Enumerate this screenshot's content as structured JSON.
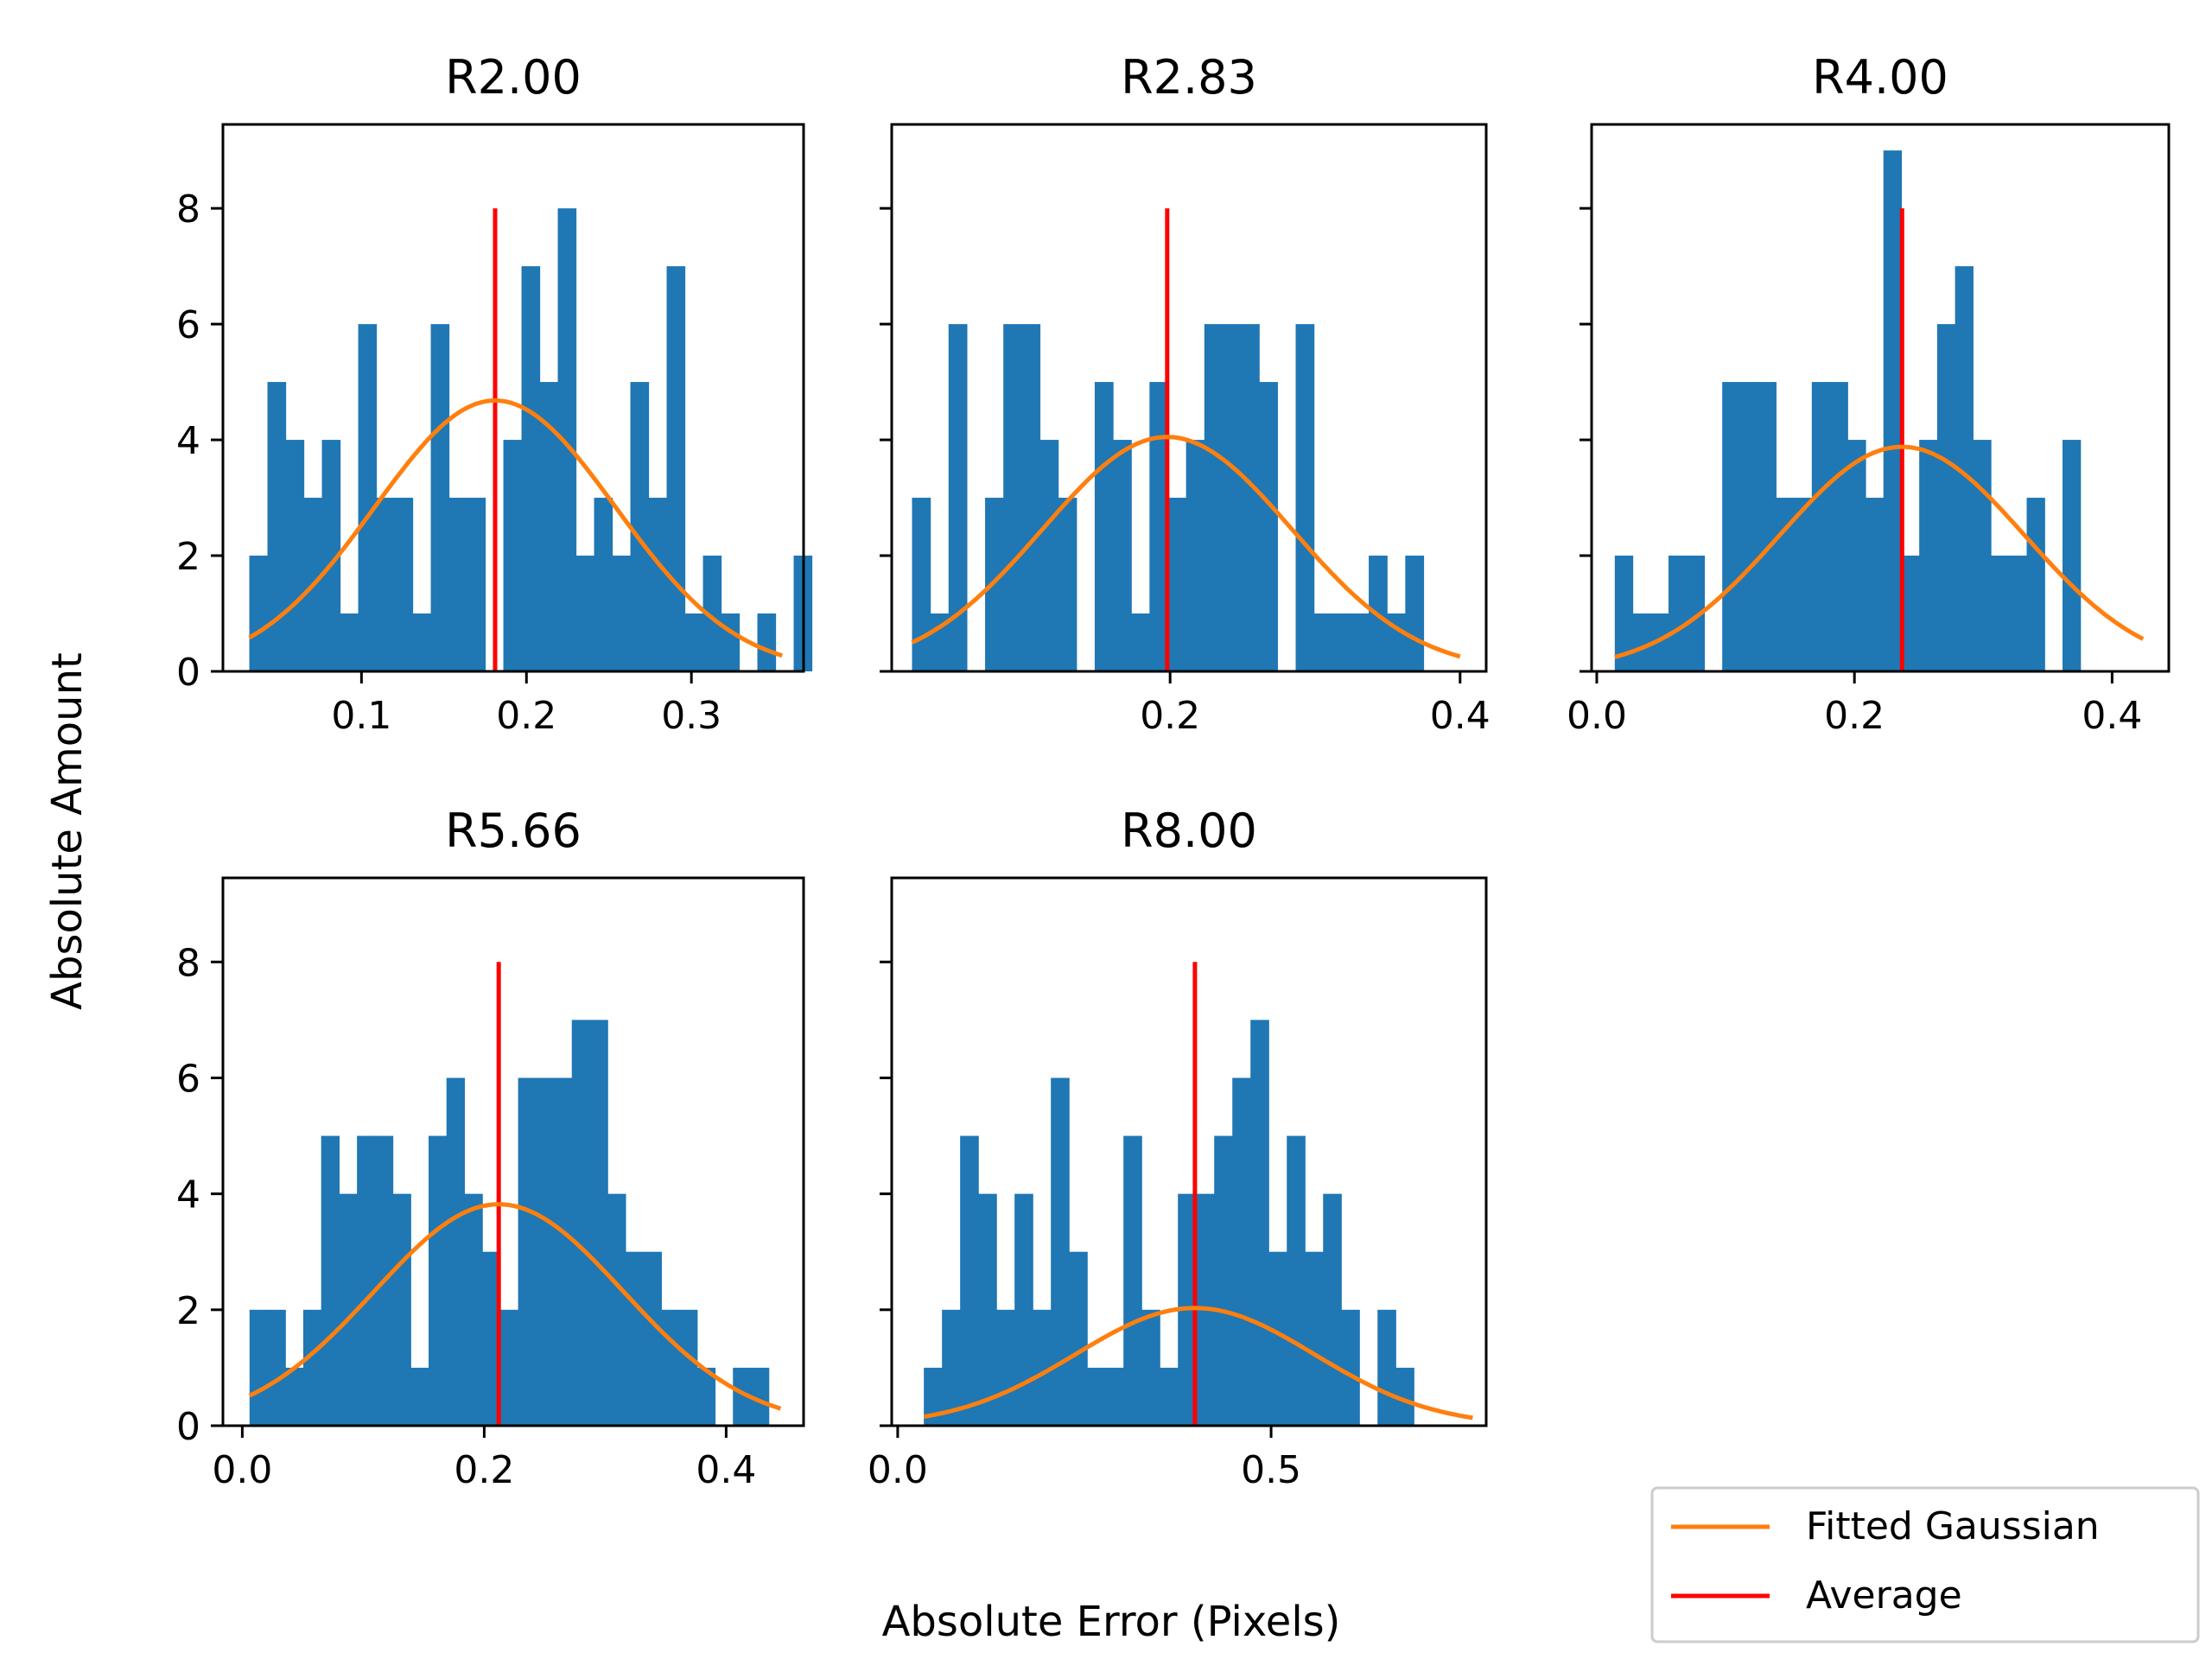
{
  "figure": {
    "ylabel": "Absolute Amount",
    "xlabel": "Absolute Error (Pixels)"
  },
  "legend": {
    "location": "lower-right",
    "entries": [
      {
        "label": "Fitted Gaussian",
        "color": "#ff7f0e"
      },
      {
        "label": "Average",
        "color": "#ff0000"
      }
    ]
  },
  "colors": {
    "bars": "#1f77b4",
    "gaussian": "#ff7f0e",
    "average": "#ff0000"
  },
  "chart_data": [
    {
      "type": "bar",
      "title": "R2.00",
      "xlim": [
        0.016,
        0.368
      ],
      "ylim": [
        0,
        9.45
      ],
      "xticks": [
        0.1,
        0.2,
        0.3
      ],
      "xtick_labels": [
        "0.1",
        "0.2",
        "0.3"
      ],
      "yticks": [
        0,
        2,
        4,
        6,
        8
      ],
      "ytick_labels": [
        "0",
        "2",
        "4",
        "6",
        "8"
      ],
      "show_ytick_labels": true,
      "bin_start": 0.032,
      "bin_width": 0.011,
      "counts": [
        2,
        5,
        4,
        3,
        4,
        1,
        6,
        3,
        3,
        1,
        6,
        3,
        3,
        0,
        4,
        7,
        5,
        8,
        2,
        3,
        2,
        5,
        3,
        7,
        1,
        2,
        1,
        0,
        1,
        0,
        2
      ],
      "average": 0.181,
      "average_line_top": 8,
      "gaussian": {
        "mu": 0.181,
        "sigma": 0.073,
        "amplitude": 4.68,
        "x_from": 0.032,
        "x_to": 0.355
      }
    },
    {
      "type": "bar",
      "title": "R2.83",
      "xlim": [
        0.008,
        0.418
      ],
      "ylim": [
        0,
        9.45
      ],
      "xticks": [
        0.2,
        0.4
      ],
      "xtick_labels": [
        "0.2",
        "0.4"
      ],
      "yticks": [
        0,
        2,
        4,
        6,
        8
      ],
      "ytick_labels": [
        "0",
        "2",
        "4",
        "6",
        "8"
      ],
      "show_ytick_labels": false,
      "bin_start": 0.022,
      "bin_width": 0.0126,
      "counts": [
        3,
        1,
        6,
        0,
        3,
        6,
        6,
        4,
        3,
        0,
        5,
        4,
        1,
        5,
        3,
        4,
        6,
        6,
        6,
        5,
        0,
        6,
        1,
        1,
        1,
        2,
        1,
        2
      ],
      "average": 0.198,
      "average_line_top": 8,
      "gaussian": {
        "mu": 0.198,
        "sigma": 0.086,
        "amplitude": 4.05,
        "x_from": 0.022,
        "x_to": 0.4
      }
    },
    {
      "type": "bar",
      "title": "R4.00",
      "xlim": [
        -0.004,
        0.444
      ],
      "ylim": [
        0,
        9.45
      ],
      "xticks": [
        0.0,
        0.2,
        0.4
      ],
      "xtick_labels": [
        "0.0",
        "0.2",
        "0.4"
      ],
      "yticks": [
        0,
        2,
        4,
        6,
        8
      ],
      "ytick_labels": [
        "0",
        "2",
        "4",
        "6",
        "8"
      ],
      "show_ytick_labels": false,
      "bin_start": 0.014,
      "bin_width": 0.0139,
      "counts": [
        2,
        1,
        1,
        2,
        2,
        0,
        5,
        5,
        5,
        3,
        3,
        5,
        5,
        4,
        3,
        9,
        2,
        4,
        6,
        7,
        4,
        2,
        2,
        3,
        0,
        4
      ],
      "average": 0.237,
      "average_line_top": 8,
      "gaussian": {
        "mu": 0.237,
        "sigma": 0.095,
        "amplitude": 3.88,
        "x_from": 0.014,
        "x_to": 0.424
      }
    },
    {
      "type": "bar",
      "title": "R5.66",
      "xlim": [
        -0.016,
        0.464
      ],
      "ylim": [
        0,
        9.45
      ],
      "xticks": [
        0.0,
        0.2,
        0.4
      ],
      "xtick_labels": [
        "0.0",
        "0.2",
        "0.4"
      ],
      "yticks": [
        0,
        2,
        4,
        6,
        8
      ],
      "ytick_labels": [
        "0",
        "2",
        "4",
        "6",
        "8"
      ],
      "show_ytick_labels": true,
      "bin_start": 0.006,
      "bin_width": 0.0148,
      "counts": [
        2,
        2,
        1,
        2,
        5,
        4,
        5,
        5,
        4,
        1,
        5,
        6,
        4,
        3,
        2,
        6,
        6,
        6,
        7,
        7,
        4,
        3,
        3,
        2,
        2,
        1,
        0,
        1,
        1
      ],
      "average": 0.212,
      "average_line_top": 8,
      "gaussian": {
        "mu": 0.212,
        "sigma": 0.103,
        "amplitude": 3.82,
        "x_from": 0.006,
        "x_to": 0.445
      }
    },
    {
      "type": "bar",
      "title": "R8.00",
      "xlim": [
        -0.008,
        0.788
      ],
      "ylim": [
        0,
        9.45
      ],
      "xticks": [
        0.0,
        0.5
      ],
      "xtick_labels": [
        "0.0",
        "0.5"
      ],
      "yticks": [
        0,
        2,
        4,
        6,
        8
      ],
      "ytick_labels": [
        "0",
        "2",
        "4",
        "6",
        "8"
      ],
      "show_ytick_labels": false,
      "bin_start": 0.035,
      "bin_width": 0.0243,
      "counts": [
        1,
        2,
        5,
        4,
        2,
        4,
        2,
        6,
        3,
        1,
        1,
        5,
        2,
        1,
        4,
        4,
        5,
        6,
        7,
        3,
        5,
        3,
        4,
        2,
        0,
        2,
        1
      ],
      "average": 0.398,
      "average_line_top": 8,
      "gaussian": {
        "mu": 0.398,
        "sigma": 0.16,
        "amplitude": 2.03,
        "x_from": 0.035,
        "x_to": 0.77
      }
    }
  ]
}
